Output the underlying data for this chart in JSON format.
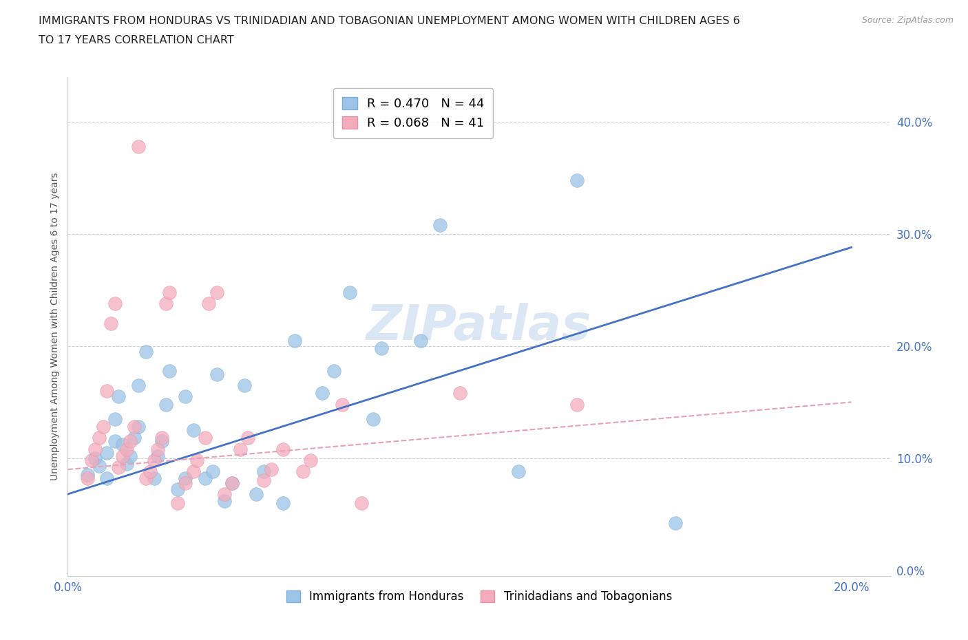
{
  "title_line1": "IMMIGRANTS FROM HONDURAS VS TRINIDADIAN AND TOBAGONIAN UNEMPLOYMENT AMONG WOMEN WITH CHILDREN AGES 6",
  "title_line2": "TO 17 YEARS CORRELATION CHART",
  "source": "Source: ZipAtlas.com",
  "xlim": [
    0.0,
    0.21
  ],
  "ylim": [
    -0.005,
    0.44
  ],
  "ylabel": "Unemployment Among Women with Children Ages 6 to 17 years",
  "legend_entries": [
    {
      "label": "R = 0.470   N = 44",
      "color": "#9dc3e6"
    },
    {
      "label": "R = 0.068   N = 41",
      "color": "#f4acbb"
    }
  ],
  "legend_labels": [
    "Immigrants from Honduras",
    "Trinidadians and Tobagonians"
  ],
  "blue_color": "#9dc3e6",
  "pink_color": "#f4acbb",
  "blue_edge": "#7ab0d8",
  "pink_edge": "#e890a8",
  "blue_line_color": "#4472C4",
  "pink_line_color": "#e8a0b4",
  "watermark_text": "ZIPatlas",
  "watermark_color": "#ccddf0",
  "honduras_scatter": [
    [
      0.005,
      0.085
    ],
    [
      0.007,
      0.1
    ],
    [
      0.008,
      0.093
    ],
    [
      0.01,
      0.105
    ],
    [
      0.01,
      0.082
    ],
    [
      0.012,
      0.115
    ],
    [
      0.012,
      0.135
    ],
    [
      0.013,
      0.155
    ],
    [
      0.014,
      0.112
    ],
    [
      0.015,
      0.095
    ],
    [
      0.016,
      0.102
    ],
    [
      0.017,
      0.118
    ],
    [
      0.018,
      0.128
    ],
    [
      0.018,
      0.165
    ],
    [
      0.02,
      0.195
    ],
    [
      0.022,
      0.082
    ],
    [
      0.023,
      0.102
    ],
    [
      0.024,
      0.115
    ],
    [
      0.025,
      0.148
    ],
    [
      0.026,
      0.178
    ],
    [
      0.028,
      0.072
    ],
    [
      0.03,
      0.082
    ],
    [
      0.03,
      0.155
    ],
    [
      0.032,
      0.125
    ],
    [
      0.035,
      0.082
    ],
    [
      0.037,
      0.088
    ],
    [
      0.038,
      0.175
    ],
    [
      0.04,
      0.062
    ],
    [
      0.042,
      0.078
    ],
    [
      0.045,
      0.165
    ],
    [
      0.048,
      0.068
    ],
    [
      0.05,
      0.088
    ],
    [
      0.055,
      0.06
    ],
    [
      0.058,
      0.205
    ],
    [
      0.065,
      0.158
    ],
    [
      0.068,
      0.178
    ],
    [
      0.072,
      0.248
    ],
    [
      0.078,
      0.135
    ],
    [
      0.08,
      0.198
    ],
    [
      0.09,
      0.205
    ],
    [
      0.095,
      0.308
    ],
    [
      0.115,
      0.088
    ],
    [
      0.13,
      0.348
    ],
    [
      0.155,
      0.042
    ]
  ],
  "trinidad_scatter": [
    [
      0.005,
      0.082
    ],
    [
      0.006,
      0.098
    ],
    [
      0.007,
      0.108
    ],
    [
      0.008,
      0.118
    ],
    [
      0.009,
      0.128
    ],
    [
      0.01,
      0.16
    ],
    [
      0.011,
      0.22
    ],
    [
      0.012,
      0.238
    ],
    [
      0.013,
      0.092
    ],
    [
      0.014,
      0.102
    ],
    [
      0.015,
      0.108
    ],
    [
      0.016,
      0.115
    ],
    [
      0.017,
      0.128
    ],
    [
      0.018,
      0.378
    ],
    [
      0.02,
      0.082
    ],
    [
      0.021,
      0.088
    ],
    [
      0.022,
      0.098
    ],
    [
      0.023,
      0.108
    ],
    [
      0.024,
      0.118
    ],
    [
      0.025,
      0.238
    ],
    [
      0.026,
      0.248
    ],
    [
      0.028,
      0.06
    ],
    [
      0.03,
      0.078
    ],
    [
      0.032,
      0.088
    ],
    [
      0.033,
      0.098
    ],
    [
      0.035,
      0.118
    ],
    [
      0.036,
      0.238
    ],
    [
      0.038,
      0.248
    ],
    [
      0.04,
      0.068
    ],
    [
      0.042,
      0.078
    ],
    [
      0.044,
      0.108
    ],
    [
      0.046,
      0.118
    ],
    [
      0.05,
      0.08
    ],
    [
      0.052,
      0.09
    ],
    [
      0.055,
      0.108
    ],
    [
      0.06,
      0.088
    ],
    [
      0.062,
      0.098
    ],
    [
      0.07,
      0.148
    ],
    [
      0.075,
      0.06
    ],
    [
      0.1,
      0.158
    ],
    [
      0.13,
      0.148
    ]
  ],
  "blue_line_slope": 1.1,
  "blue_line_intercept": 0.068,
  "pink_line_slope": 0.3,
  "pink_line_intercept": 0.09,
  "x_ticks": [
    0.0,
    0.2
  ],
  "x_tick_labels": [
    "0.0%",
    "20.0%"
  ],
  "y_ticks": [
    0.0,
    0.1,
    0.2,
    0.3,
    0.4
  ],
  "y_tick_labels": [
    "0.0%",
    "10.0%",
    "20.0%",
    "30.0%",
    "40.0%"
  ],
  "gridline_color": "#d0d0d0",
  "axis_tick_color": "#4472C4",
  "background_color": "#ffffff",
  "title_fontsize": 11.5
}
